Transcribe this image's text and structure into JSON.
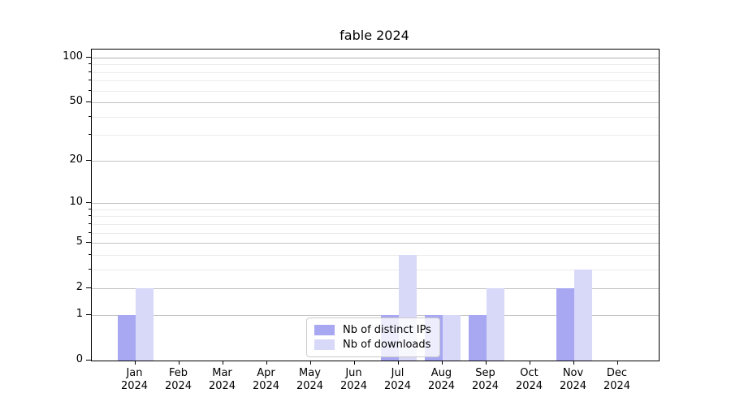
{
  "chart_data": {
    "type": "bar",
    "title": "fable 2024",
    "categories": [
      "Jan",
      "Feb",
      "Mar",
      "Apr",
      "May",
      "Jun",
      "Jul",
      "Aug",
      "Sep",
      "Oct",
      "Nov",
      "Dec"
    ],
    "year": "2024",
    "series": [
      {
        "name": "Nb of distinct IPs",
        "color": "#a7a7f2",
        "values": [
          1,
          0,
          0,
          0,
          0,
          0,
          1,
          1,
          1,
          0,
          2,
          0
        ]
      },
      {
        "name": "Nb of downloads",
        "color": "#d8d8f8",
        "values": [
          2,
          0,
          0,
          0,
          0,
          0,
          4,
          1,
          2,
          0,
          3,
          0
        ]
      }
    ],
    "xlabel": "",
    "ylabel": "",
    "yscale": "log1p",
    "ylim": [
      0,
      112
    ],
    "yticks": [
      0,
      1,
      2,
      5,
      10,
      20,
      50,
      100
    ],
    "minor_gridlines": [
      3,
      4,
      6,
      7,
      8,
      9,
      30,
      40,
      60,
      70,
      80,
      90
    ],
    "grid": true,
    "legend_position": "bottom-center",
    "legend_labels": [
      "Nb of distinct IPs",
      "Nb of downloads"
    ]
  }
}
